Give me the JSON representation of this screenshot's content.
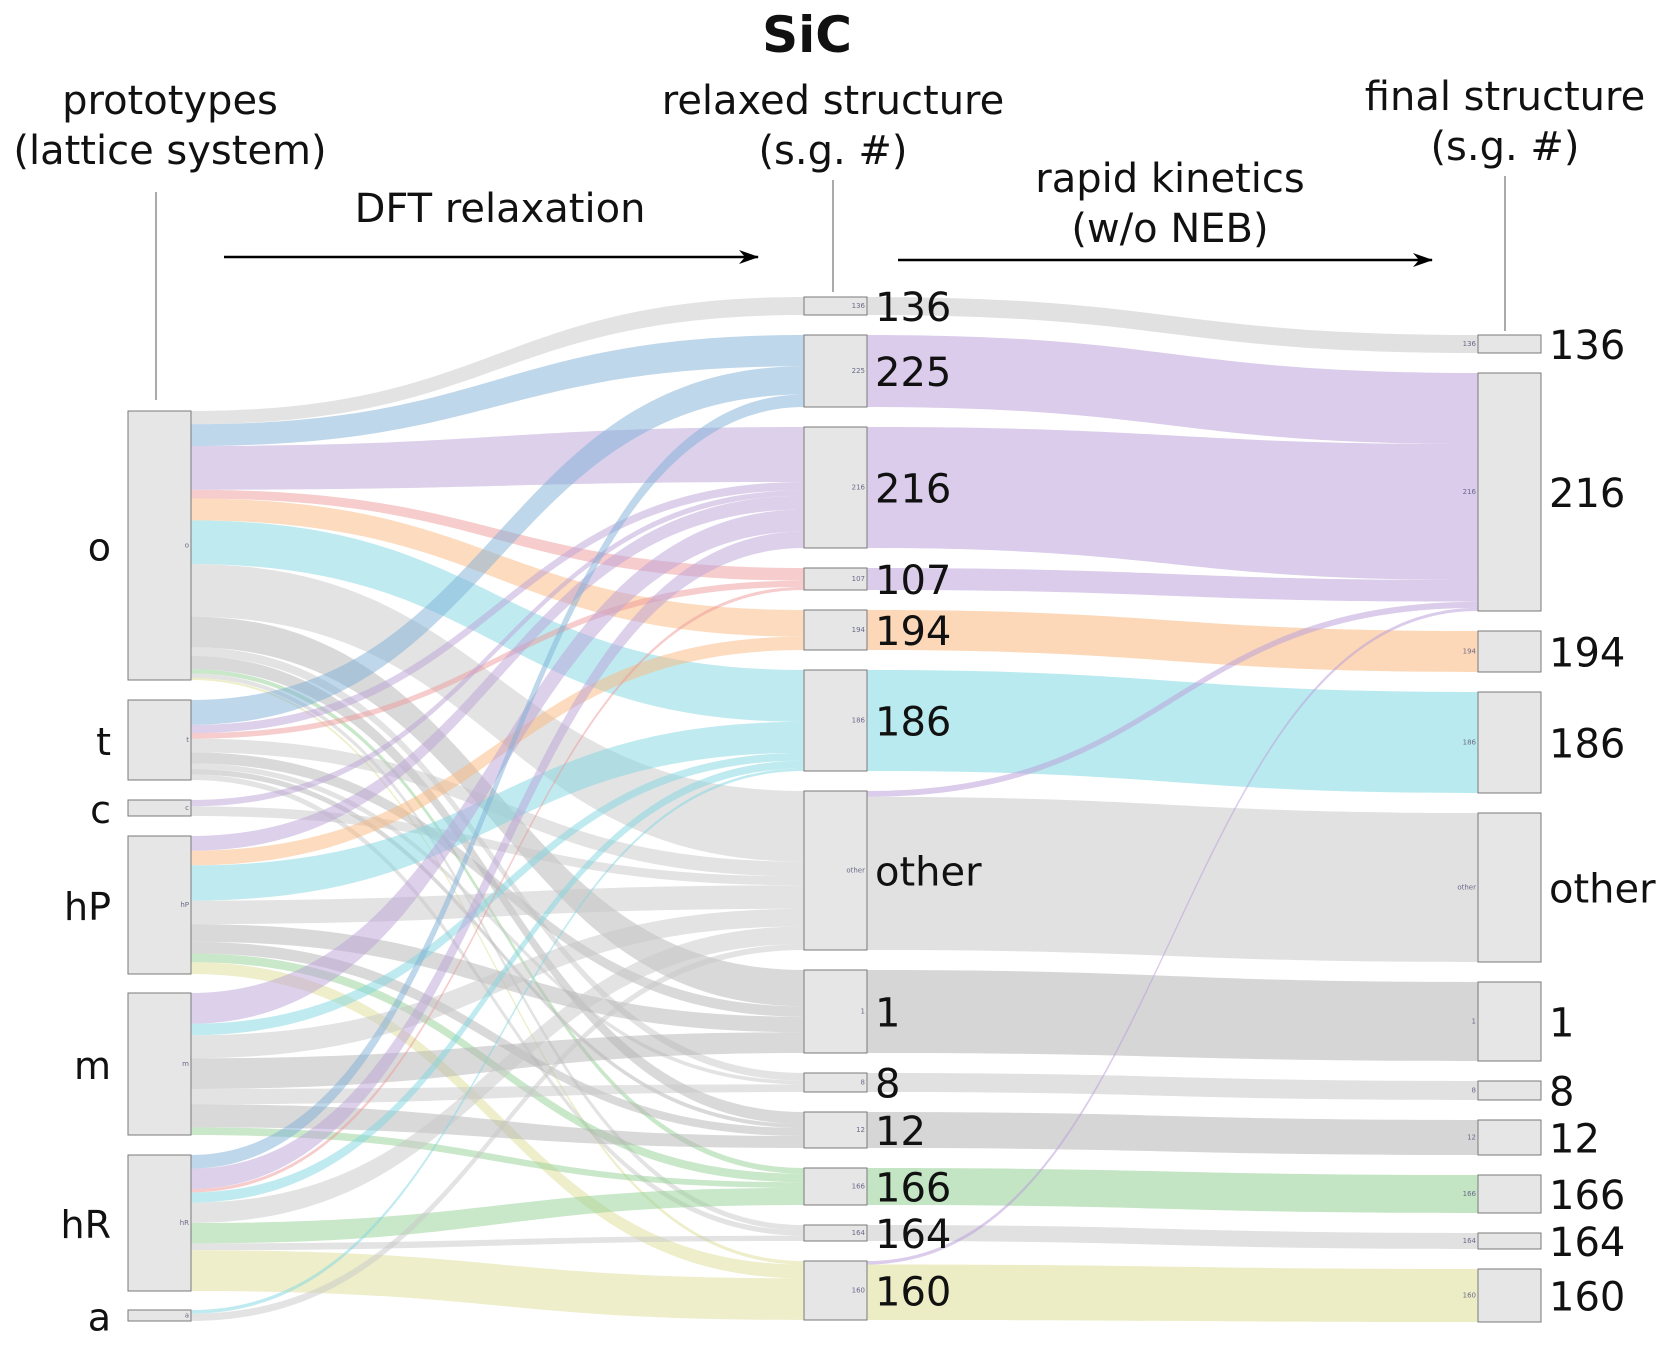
{
  "title": "SiC",
  "headers": {
    "prototypes_line1": "prototypes",
    "prototypes_line2": "(lattice system)",
    "relaxed_line1": "relaxed structure",
    "relaxed_line2": "(s.g. #)",
    "final_line1": "final structure",
    "final_line2": "(s.g. #)"
  },
  "arrows": {
    "dft": "DFT relaxation",
    "kinetics_line1": "rapid kinetics",
    "kinetics_line2": "(w/o NEB)"
  },
  "columns": {
    "prototypes": [
      "o",
      "t",
      "c",
      "hP",
      "m",
      "hR",
      "a"
    ],
    "relaxed": [
      "136",
      "225",
      "216",
      "107",
      "194",
      "186",
      "other",
      "1",
      "8",
      "12",
      "166",
      "164",
      "160"
    ],
    "final": [
      "136",
      "216",
      "194",
      "186",
      "other",
      "1",
      "8",
      "12",
      "166",
      "164",
      "160"
    ]
  },
  "colors": {
    "gray": "#c8c8c8",
    "dark_gray": "#b4b4b4",
    "blue": "#7fb0d8",
    "purple": "#bba2d8",
    "red": "#ee9a9a",
    "orange": "#fcb87e",
    "cyan": "#7fd8e2",
    "green": "#94d094",
    "yellow": "#dede96",
    "node_fill": "#e6e6e6",
    "node_stroke": "#7a7a7a"
  },
  "flows_dft": [
    {
      "from": "o",
      "to": "136",
      "value": 6,
      "color": "gray"
    },
    {
      "from": "o",
      "to": "225",
      "value": 10,
      "color": "blue"
    },
    {
      "from": "o",
      "to": "216",
      "value": 20,
      "color": "purple"
    },
    {
      "from": "o",
      "to": "107",
      "value": 4,
      "color": "red"
    },
    {
      "from": "o",
      "to": "194",
      "value": 10,
      "color": "orange"
    },
    {
      "from": "o",
      "to": "186",
      "value": 20,
      "color": "cyan"
    },
    {
      "from": "o",
      "to": "other",
      "value": 24,
      "color": "gray"
    },
    {
      "from": "o",
      "to": "1",
      "value": 14,
      "color": "dark_gray"
    },
    {
      "from": "o",
      "to": "8",
      "value": 4,
      "color": "gray"
    },
    {
      "from": "o",
      "to": "12",
      "value": 6,
      "color": "dark_gray"
    },
    {
      "from": "o",
      "to": "166",
      "value": 2,
      "color": "green"
    },
    {
      "from": "o",
      "to": "164",
      "value": 2,
      "color": "gray"
    },
    {
      "from": "o",
      "to": "160",
      "value": 1,
      "color": "yellow"
    },
    {
      "from": "t",
      "to": "225",
      "value": 9,
      "color": "blue"
    },
    {
      "from": "t",
      "to": "216",
      "value": 3,
      "color": "purple"
    },
    {
      "from": "t",
      "to": "107",
      "value": 2,
      "color": "red"
    },
    {
      "from": "t",
      "to": "other",
      "value": 5,
      "color": "gray"
    },
    {
      "from": "t",
      "to": "1",
      "value": 4,
      "color": "dark_gray"
    },
    {
      "from": "t",
      "to": "8",
      "value": 2,
      "color": "gray"
    },
    {
      "from": "t",
      "to": "12",
      "value": 2,
      "color": "dark_gray"
    },
    {
      "from": "t",
      "to": "164",
      "value": 2,
      "color": "gray"
    },
    {
      "from": "c",
      "to": "216",
      "value": 2,
      "color": "purple"
    },
    {
      "from": "c",
      "to": "other",
      "value": 3,
      "color": "gray"
    },
    {
      "from": "hP",
      "to": "216",
      "value": 5,
      "color": "purple"
    },
    {
      "from": "hP",
      "to": "194",
      "value": 5,
      "color": "orange"
    },
    {
      "from": "hP",
      "to": "186",
      "value": 12,
      "color": "cyan"
    },
    {
      "from": "hP",
      "to": "other",
      "value": 8,
      "color": "gray"
    },
    {
      "from": "hP",
      "to": "1",
      "value": 6,
      "color": "dark_gray"
    },
    {
      "from": "hP",
      "to": "12",
      "value": 4,
      "color": "dark_gray"
    },
    {
      "from": "hP",
      "to": "166",
      "value": 3,
      "color": "green"
    },
    {
      "from": "hP",
      "to": "160",
      "value": 4,
      "color": "yellow"
    },
    {
      "from": "m",
      "to": "216",
      "value": 8,
      "color": "purple"
    },
    {
      "from": "m",
      "to": "186",
      "value": 3,
      "color": "cyan"
    },
    {
      "from": "m",
      "to": "other",
      "value": 6,
      "color": "gray"
    },
    {
      "from": "m",
      "to": "1",
      "value": 8,
      "color": "dark_gray"
    },
    {
      "from": "m",
      "to": "8",
      "value": 4,
      "color": "gray"
    },
    {
      "from": "m",
      "to": "12",
      "value": 6,
      "color": "dark_gray"
    },
    {
      "from": "m",
      "to": "166",
      "value": 2,
      "color": "green"
    },
    {
      "from": "hR",
      "to": "225",
      "value": 4,
      "color": "blue"
    },
    {
      "from": "hR",
      "to": "216",
      "value": 6,
      "color": "purple"
    },
    {
      "from": "hR",
      "to": "107",
      "value": 1,
      "color": "red"
    },
    {
      "from": "hR",
      "to": "186",
      "value": 3,
      "color": "cyan"
    },
    {
      "from": "hR",
      "to": "other",
      "value": 6,
      "color": "gray"
    },
    {
      "from": "hR",
      "to": "166",
      "value": 6,
      "color": "green"
    },
    {
      "from": "hR",
      "to": "164",
      "value": 2,
      "color": "gray"
    },
    {
      "from": "hR",
      "to": "160",
      "value": 12,
      "color": "yellow"
    },
    {
      "from": "a",
      "to": "186",
      "value": 1,
      "color": "cyan"
    },
    {
      "from": "a",
      "to": "other",
      "value": 2,
      "color": "gray"
    }
  ],
  "flows_kinetics": [
    {
      "from": "136",
      "to": "136",
      "value": 6,
      "color": "gray"
    },
    {
      "from": "225",
      "to": "216",
      "value": 23,
      "color": "purple"
    },
    {
      "from": "216",
      "to": "216",
      "value": 44,
      "color": "purple"
    },
    {
      "from": "107",
      "to": "216",
      "value": 7,
      "color": "purple"
    },
    {
      "from": "194",
      "to": "194",
      "value": 15,
      "color": "orange"
    },
    {
      "from": "186",
      "to": "186",
      "value": 39,
      "color": "cyan"
    },
    {
      "from": "other",
      "to": "216",
      "value": 2,
      "color": "purple"
    },
    {
      "from": "other",
      "to": "other",
      "value": 52,
      "color": "gray"
    },
    {
      "from": "1",
      "to": "1",
      "value": 32,
      "color": "dark_gray"
    },
    {
      "from": "8",
      "to": "8",
      "value": 10,
      "color": "gray"
    },
    {
      "from": "12",
      "to": "12",
      "value": 18,
      "color": "dark_gray"
    },
    {
      "from": "166",
      "to": "166",
      "value": 13,
      "color": "green"
    },
    {
      "from": "164",
      "to": "164",
      "value": 6,
      "color": "gray"
    },
    {
      "from": "160",
      "to": "216",
      "value": 1,
      "color": "purple"
    },
    {
      "from": "160",
      "to": "160",
      "value": 16,
      "color": "yellow"
    }
  ]
}
